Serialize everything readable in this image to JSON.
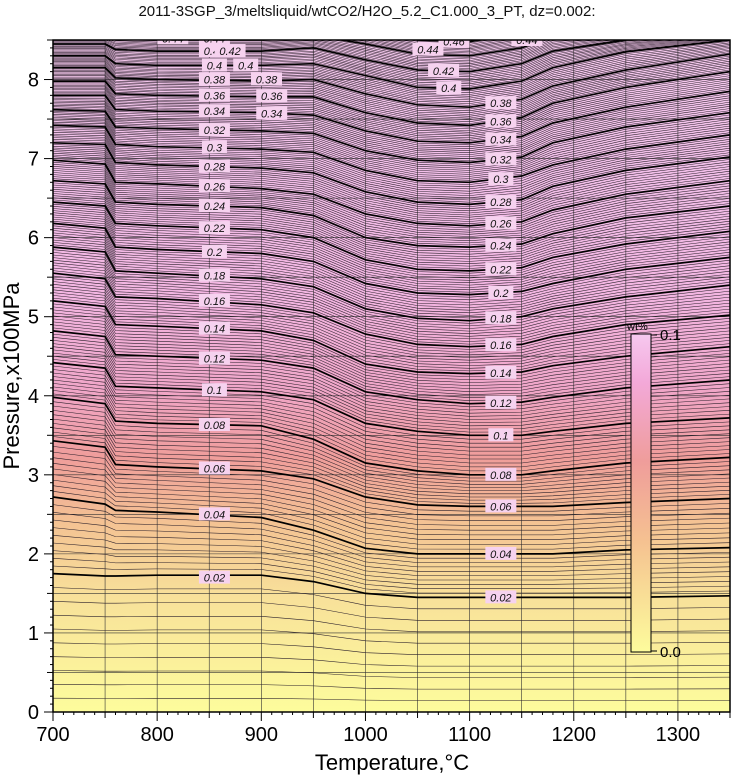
{
  "chart_data": {
    "type": "heatmap",
    "title": "2011-3SGP_3/meltsliquid/wtCO2/H2O_5.2_C1.000_3_PT, dz=0.002:",
    "xlabel": "Temperature,°C",
    "ylabel": "Pressure,x100MPa",
    "xlim": [
      700,
      1350
    ],
    "ylim": [
      0,
      8.5
    ],
    "x_ticks": [
      700,
      800,
      900,
      1000,
      1100,
      1200,
      1300
    ],
    "y_ticks": [
      0,
      1,
      2,
      3,
      4,
      5,
      6,
      7,
      8
    ],
    "grid": true,
    "z_variable": "wt% CO2 in melt",
    "contour_interval": 0.002,
    "labeled_contour_interval": 0.02,
    "colorbar": {
      "unit": "wt%",
      "min_label": "0.0",
      "max_label": "0.1",
      "range": [
        0,
        0.1
      ],
      "colors": [
        "#fdfc9c",
        "#f5c191",
        "#ef9d9b",
        "#f3a9d9",
        "#f6c8ef"
      ]
    },
    "contour_pressure_at_temperature": {
      "temperature": [
        700,
        750,
        760,
        800,
        900,
        950,
        1000,
        1050,
        1100,
        1150,
        1180,
        1250,
        1350
      ],
      "levels": [
        {
          "level": 0.02,
          "pressure": [
            1.75,
            1.72,
            1.72,
            1.73,
            1.73,
            1.65,
            1.5,
            1.45,
            1.45,
            1.45,
            1.45,
            1.45,
            1.47
          ]
        },
        {
          "level": 0.04,
          "pressure": [
            2.72,
            2.63,
            2.55,
            2.53,
            2.46,
            2.3,
            2.07,
            2.0,
            2.0,
            2.0,
            2.0,
            2.05,
            2.08
          ]
        },
        {
          "level": 0.06,
          "pressure": [
            3.43,
            3.35,
            3.13,
            3.1,
            3.05,
            2.95,
            2.72,
            2.62,
            2.6,
            2.6,
            2.6,
            2.65,
            2.7
          ]
        },
        {
          "level": 0.08,
          "pressure": [
            3.98,
            3.9,
            3.68,
            3.65,
            3.62,
            3.45,
            3.15,
            3.05,
            3.0,
            3.0,
            3.05,
            3.15,
            3.22
          ]
        },
        {
          "level": 0.1,
          "pressure": [
            4.42,
            4.35,
            4.12,
            4.1,
            4.05,
            3.95,
            3.65,
            3.55,
            3.5,
            3.5,
            3.55,
            3.65,
            3.72
          ]
        },
        {
          "level": 0.12,
          "pressure": [
            4.82,
            4.75,
            4.52,
            4.5,
            4.45,
            4.35,
            4.05,
            3.95,
            3.9,
            3.92,
            3.98,
            4.1,
            4.2
          ]
        },
        {
          "level": 0.14,
          "pressure": [
            5.2,
            5.13,
            4.9,
            4.88,
            4.82,
            4.7,
            4.4,
            4.3,
            4.28,
            4.3,
            4.38,
            4.5,
            4.62
          ]
        },
        {
          "level": 0.16,
          "pressure": [
            5.55,
            5.48,
            5.25,
            5.23,
            5.15,
            5.05,
            4.78,
            4.65,
            4.62,
            4.65,
            4.75,
            4.9,
            5.02
          ]
        },
        {
          "level": 0.18,
          "pressure": [
            5.88,
            5.82,
            5.58,
            5.55,
            5.48,
            5.38,
            5.1,
            4.98,
            4.95,
            5.0,
            5.1,
            5.25,
            5.4
          ]
        },
        {
          "level": 0.2,
          "pressure": [
            6.18,
            6.12,
            5.88,
            5.85,
            5.8,
            5.7,
            5.42,
            5.3,
            5.28,
            5.32,
            5.42,
            5.6,
            5.75
          ]
        },
        {
          "level": 0.22,
          "pressure": [
            6.45,
            6.4,
            6.18,
            6.15,
            6.1,
            6.0,
            5.72,
            5.6,
            5.58,
            5.62,
            5.75,
            5.92,
            6.08
          ]
        },
        {
          "level": 0.24,
          "pressure": [
            6.72,
            6.68,
            6.45,
            6.42,
            6.38,
            6.28,
            6.0,
            5.9,
            5.88,
            5.92,
            6.05,
            6.25,
            6.4
          ]
        },
        {
          "level": 0.26,
          "pressure": [
            6.98,
            6.93,
            6.7,
            6.68,
            6.62,
            6.55,
            6.3,
            6.18,
            6.15,
            6.2,
            6.35,
            6.55,
            6.72
          ]
        },
        {
          "level": 0.28,
          "pressure": [
            7.2,
            7.18,
            6.95,
            6.92,
            6.88,
            6.82,
            6.58,
            6.45,
            6.42,
            6.48,
            6.65,
            6.85,
            7.02
          ]
        },
        {
          "level": 0.3,
          "pressure": [
            7.42,
            7.4,
            7.18,
            7.15,
            7.12,
            7.08,
            6.85,
            6.72,
            6.7,
            6.78,
            6.92,
            7.12,
            7.3
          ]
        },
        {
          "level": 0.32,
          "pressure": [
            7.62,
            7.6,
            7.4,
            7.38,
            7.35,
            7.32,
            7.1,
            6.98,
            6.95,
            7.02,
            7.2,
            7.4,
            7.58
          ]
        },
        {
          "level": 0.34,
          "pressure": [
            7.8,
            7.8,
            7.62,
            7.6,
            7.58,
            7.55,
            7.35,
            7.22,
            7.2,
            7.28,
            7.45,
            7.65,
            7.85
          ]
        },
        {
          "level": 0.36,
          "pressure": [
            7.98,
            7.98,
            7.82,
            7.8,
            7.78,
            7.78,
            7.58,
            7.45,
            7.42,
            7.52,
            7.7,
            7.9,
            8.1
          ]
        },
        {
          "level": 0.38,
          "pressure": [
            8.15,
            8.15,
            8.02,
            8.0,
            7.98,
            8.0,
            7.82,
            7.68,
            7.65,
            7.75,
            7.92,
            8.12,
            8.32
          ]
        },
        {
          "level": 0.4,
          "pressure": [
            8.3,
            8.3,
            8.2,
            8.18,
            8.18,
            8.2,
            8.05,
            7.9,
            7.88,
            7.98,
            8.15,
            8.35,
            8.5
          ]
        },
        {
          "level": 0.42,
          "pressure": [
            8.45,
            8.45,
            8.38,
            8.36,
            8.36,
            8.4,
            8.25,
            8.12,
            8.1,
            8.2,
            8.36,
            8.5,
            8.6
          ]
        },
        {
          "level": 0.44,
          "pressure": [
            8.58,
            8.58,
            8.54,
            8.52,
            8.52,
            8.56,
            8.45,
            8.32,
            8.3,
            8.4,
            8.55,
            8.62,
            8.7
          ]
        },
        {
          "level": 0.46,
          "pressure": [
            8.7,
            8.7,
            8.68,
            8.66,
            8.66,
            8.7,
            8.62,
            8.5,
            8.48,
            8.58,
            8.7,
            8.75,
            8.8
          ]
        },
        {
          "level": 0.48,
          "pressure": [
            8.82,
            8.82,
            8.8,
            8.8,
            8.8,
            8.82,
            8.78,
            8.68,
            8.66,
            8.75,
            8.85,
            8.88,
            8.9
          ]
        }
      ]
    },
    "contour_label_positions": [
      {
        "text": "0.02",
        "x": 855,
        "y": 1.7
      },
      {
        "text": "0.04",
        "x": 855,
        "y": 2.5
      },
      {
        "text": "0.06",
        "x": 855,
        "y": 3.08
      },
      {
        "text": "0.08",
        "x": 855,
        "y": 3.63
      },
      {
        "text": "0.1",
        "x": 855,
        "y": 4.07
      },
      {
        "text": "0.12",
        "x": 855,
        "y": 4.47
      },
      {
        "text": "0.14",
        "x": 855,
        "y": 4.85
      },
      {
        "text": "0.16",
        "x": 855,
        "y": 5.2
      },
      {
        "text": "0.18",
        "x": 855,
        "y": 5.52
      },
      {
        "text": "0.2",
        "x": 855,
        "y": 5.82
      },
      {
        "text": "0.22",
        "x": 855,
        "y": 6.12
      },
      {
        "text": "0.24",
        "x": 855,
        "y": 6.4
      },
      {
        "text": "0.26",
        "x": 855,
        "y": 6.65
      },
      {
        "text": "0.28",
        "x": 855,
        "y": 6.9
      },
      {
        "text": "0.3",
        "x": 855,
        "y": 7.14
      },
      {
        "text": "0.32",
        "x": 855,
        "y": 7.36
      },
      {
        "text": "0.34",
        "x": 855,
        "y": 7.6
      },
      {
        "text": "0.36",
        "x": 855,
        "y": 7.8
      },
      {
        "text": "0.38",
        "x": 855,
        "y": 8.0
      },
      {
        "text": "0.4",
        "x": 855,
        "y": 8.18
      },
      {
        "text": "0.42",
        "x": 855,
        "y": 8.36
      },
      {
        "text": "0.44",
        "x": 855,
        "y": 8.52
      },
      {
        "text": "0.46",
        "x": 855,
        "y": 8.66
      },
      {
        "text": "0.02",
        "x": 1130,
        "y": 1.45
      },
      {
        "text": "0.04",
        "x": 1130,
        "y": 2.0
      },
      {
        "text": "0.06",
        "x": 1130,
        "y": 2.6
      },
      {
        "text": "0.08",
        "x": 1130,
        "y": 3.0
      },
      {
        "text": "0.1",
        "x": 1130,
        "y": 3.5
      },
      {
        "text": "0.12",
        "x": 1130,
        "y": 3.91
      },
      {
        "text": "0.14",
        "x": 1130,
        "y": 4.29
      },
      {
        "text": "0.16",
        "x": 1130,
        "y": 4.64
      },
      {
        "text": "0.18",
        "x": 1130,
        "y": 4.98
      },
      {
        "text": "0.2",
        "x": 1130,
        "y": 5.3
      },
      {
        "text": "0.22",
        "x": 1130,
        "y": 5.6
      },
      {
        "text": "0.24",
        "x": 1130,
        "y": 5.9
      },
      {
        "text": "0.26",
        "x": 1130,
        "y": 6.18
      },
      {
        "text": "0.28",
        "x": 1130,
        "y": 6.45
      },
      {
        "text": "0.3",
        "x": 1130,
        "y": 6.74
      },
      {
        "text": "0.32",
        "x": 1130,
        "y": 6.99
      },
      {
        "text": "0.34",
        "x": 1130,
        "y": 7.24
      },
      {
        "text": "0.36",
        "x": 1130,
        "y": 7.47
      },
      {
        "text": "0.38",
        "x": 1130,
        "y": 7.7
      },
      {
        "text": "0.4",
        "x": 1080,
        "y": 7.89
      },
      {
        "text": "0.42",
        "x": 1075,
        "y": 8.11
      },
      {
        "text": "0.44",
        "x": 1060,
        "y": 8.38
      },
      {
        "text": "0.44",
        "x": 1155,
        "y": 8.5
      },
      {
        "text": "0.46",
        "x": 1085,
        "y": 8.48
      },
      {
        "text": "0.46",
        "x": 1150,
        "y": 8.6
      },
      {
        "text": "0.46",
        "x": 770,
        "y": 8.67
      },
      {
        "text": "0.44",
        "x": 725,
        "y": 8.6
      },
      {
        "text": "0.48",
        "x": 735,
        "y": 8.8
      },
      {
        "text": "0.44",
        "x": 815,
        "y": 8.52
      },
      {
        "text": "0.42",
        "x": 870,
        "y": 8.36
      },
      {
        "text": "0.4",
        "x": 885,
        "y": 8.18
      },
      {
        "text": "0.38",
        "x": 905,
        "y": 8.0
      },
      {
        "text": "0.36",
        "x": 910,
        "y": 7.79
      },
      {
        "text": "0.34",
        "x": 910,
        "y": 7.57
      }
    ]
  }
}
